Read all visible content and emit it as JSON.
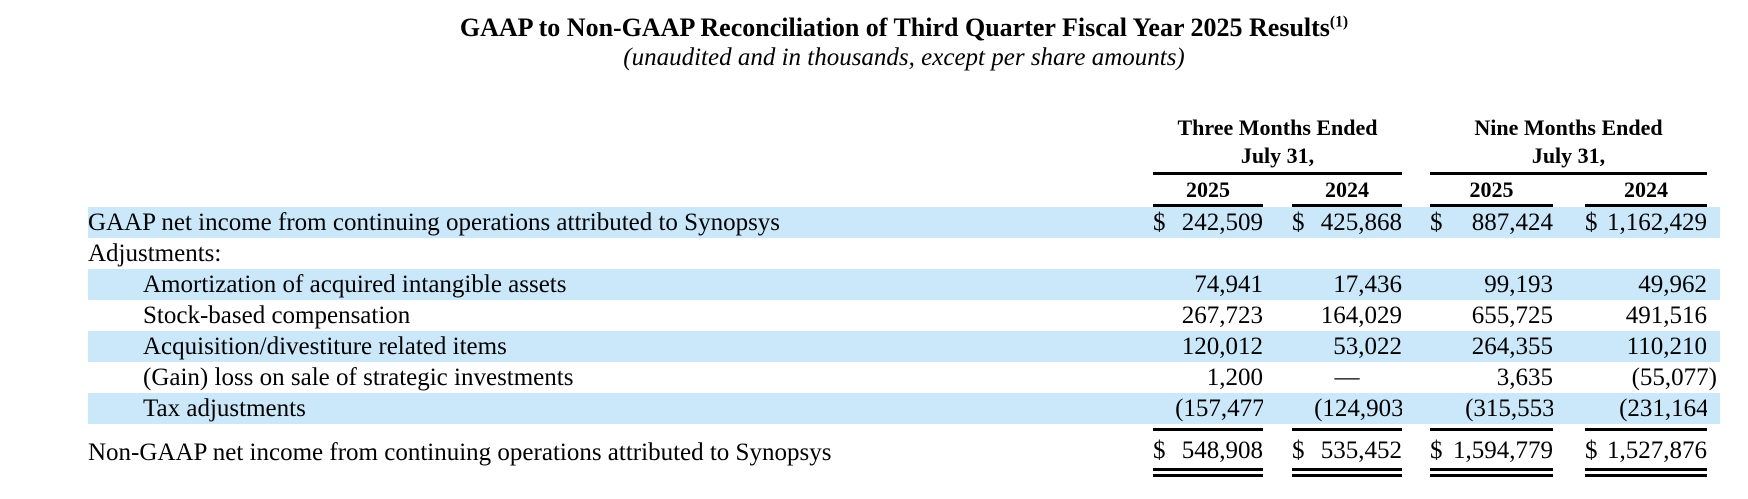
{
  "title": {
    "text": "GAAP to Non-GAAP Reconciliation of Third Quarter Fiscal Year 2025 Results",
    "footnote_ref": "(1)"
  },
  "subtitle": "(unaudited and in thousands, except per share amounts)",
  "colors": {
    "highlight": "#cbe8fa",
    "text": "#000000"
  },
  "table": {
    "column_groups": [
      {
        "line1": "Three Months Ended",
        "line2": "July 31,"
      },
      {
        "line1": "Nine Months Ended",
        "line2": "July 31,"
      }
    ],
    "year_headers": [
      "2025",
      "2024",
      "2025",
      "2024"
    ],
    "rows": [
      {
        "label": "GAAP net income from continuing operations attributed to Synopsys",
        "indent": false,
        "highlight": true,
        "dollars": [
          "$",
          "$",
          "$",
          "$"
        ],
        "values": [
          "242,509",
          "425,868",
          "887,424",
          "1,162,429"
        ]
      },
      {
        "label": "Adjustments:",
        "indent": false,
        "highlight": false,
        "dollars": [
          "",
          "",
          "",
          ""
        ],
        "values": [
          "",
          "",
          "",
          ""
        ]
      },
      {
        "label": "Amortization of acquired intangible assets",
        "indent": true,
        "highlight": true,
        "dollars": [
          "",
          "",
          "",
          ""
        ],
        "values": [
          "74,941",
          "17,436",
          "99,193",
          "49,962"
        ]
      },
      {
        "label": "Stock-based compensation",
        "indent": true,
        "highlight": false,
        "dollars": [
          "",
          "",
          "",
          ""
        ],
        "values": [
          "267,723",
          "164,029",
          "655,725",
          "491,516"
        ]
      },
      {
        "label": "Acquisition/divestiture related items",
        "indent": true,
        "highlight": true,
        "dollars": [
          "",
          "",
          "",
          ""
        ],
        "values": [
          "120,012",
          "53,022",
          "264,355",
          "110,210"
        ]
      },
      {
        "label": "(Gain) loss on sale of strategic investments",
        "indent": true,
        "highlight": false,
        "dollars": [
          "",
          "",
          "",
          ""
        ],
        "values": [
          "1,200",
          "—",
          "3,635",
          "(55,077)"
        ]
      },
      {
        "label": "Tax adjustments",
        "indent": true,
        "highlight": true,
        "dollars": [
          "",
          "",
          "",
          ""
        ],
        "values": [
          "(157,477)",
          "(124,903)",
          "(315,553)",
          "(231,164)"
        ]
      }
    ],
    "total_row": {
      "label": "Non-GAAP net income from continuing operations attributed to Synopsys",
      "dollars": [
        "$",
        "$",
        "$",
        "$"
      ],
      "values": [
        "548,908",
        "535,452",
        "1,594,779",
        "1,527,876"
      ]
    }
  }
}
